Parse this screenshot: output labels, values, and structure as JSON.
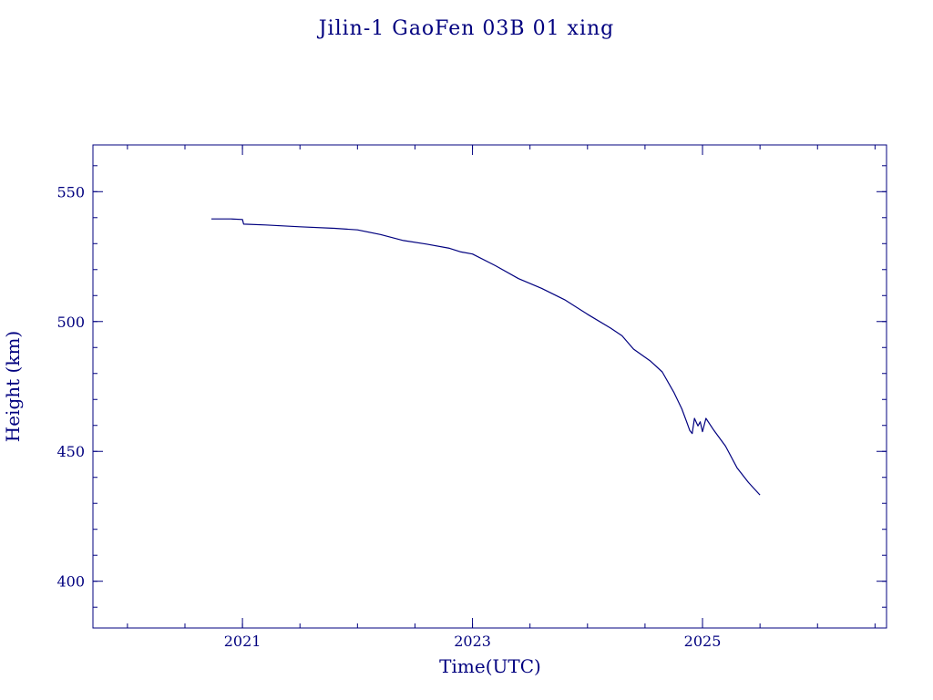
{
  "chart_data": {
    "type": "line",
    "title": "Jilin-1 GaoFen 03B 01 xing",
    "xlabel": "Time(UTC)",
    "ylabel": "Height (km)",
    "xlim": [
      2019.7,
      2026.6
    ],
    "ylim": [
      382,
      568
    ],
    "xticks": [
      {
        "value": 2021,
        "label": "2021"
      },
      {
        "value": 2023,
        "label": "2023"
      },
      {
        "value": 2025,
        "label": "2025"
      }
    ],
    "xminor_step": 0.5,
    "yticks": [
      {
        "value": 400,
        "label": "400"
      },
      {
        "value": 450,
        "label": "450"
      },
      {
        "value": 500,
        "label": "500"
      },
      {
        "value": 550,
        "label": "550"
      }
    ],
    "yminor_step": 10,
    "grid": false,
    "legend": "none",
    "line_color": "#00007f",
    "series": [
      {
        "x": [
          2020.73,
          2020.9,
          2021.0,
          2021.01,
          2021.2,
          2021.5,
          2021.8,
          2022.0,
          2022.2,
          2022.4,
          2022.6,
          2022.8,
          2022.9,
          2023.0,
          2023.2,
          2023.4,
          2023.6,
          2023.8,
          2024.0,
          2024.2,
          2024.3,
          2024.4,
          2024.55,
          2024.65,
          2024.75,
          2024.82,
          2024.86,
          2024.89,
          2024.91,
          2024.93,
          2024.96,
          2024.98,
          2025.0,
          2025.03,
          2025.1,
          2025.2,
          2025.3,
          2025.4,
          2025.5
        ],
        "y": [
          539.5,
          539.5,
          539.3,
          537.5,
          537.2,
          536.5,
          535.9,
          535.3,
          533.5,
          531.2,
          529.8,
          528.2,
          526.8,
          526.0,
          521.5,
          516.5,
          512.8,
          508.4,
          502.8,
          497.5,
          494.5,
          489.4,
          484.7,
          480.6,
          472.8,
          466.4,
          461.6,
          458.0,
          456.9,
          462.7,
          459.8,
          461.4,
          457.6,
          462.7,
          458.0,
          452.0,
          443.7,
          438.0,
          433.2
        ]
      }
    ]
  }
}
